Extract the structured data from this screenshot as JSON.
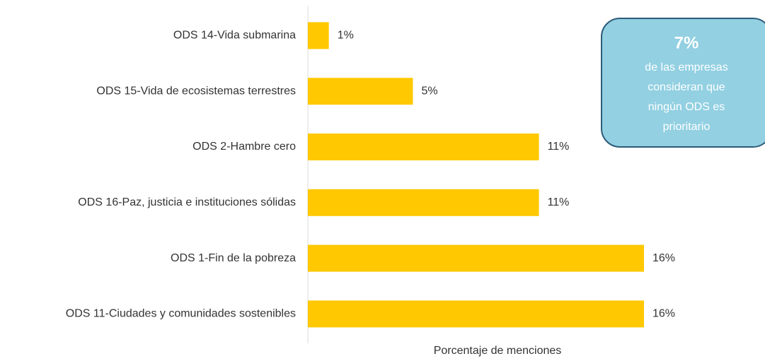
{
  "chart_data": {
    "type": "barh",
    "categories": [
      "ODS 14-Vida submarina",
      "ODS 15-Vida de ecosistemas terrestres",
      "ODS 2-Hambre cero",
      "ODS 16-Paz, justicia e instituciones sólidas",
      "ODS 1-Fin de la pobreza",
      "ODS 11-Ciudades y comunidades sostenibles"
    ],
    "values": [
      1,
      5,
      11,
      11,
      16,
      16
    ],
    "value_labels": [
      "1%",
      "5%",
      "11%",
      "11%",
      "16%",
      "16%"
    ],
    "color": "#ffc800",
    "xlim": [
      0,
      16
    ],
    "xlabel": "Porcentaje de menciones",
    "annotation": {
      "headline": "7%",
      "lines": [
        "de las empresas",
        "consideran que",
        "ningún ODS es",
        "prioritario"
      ]
    }
  }
}
